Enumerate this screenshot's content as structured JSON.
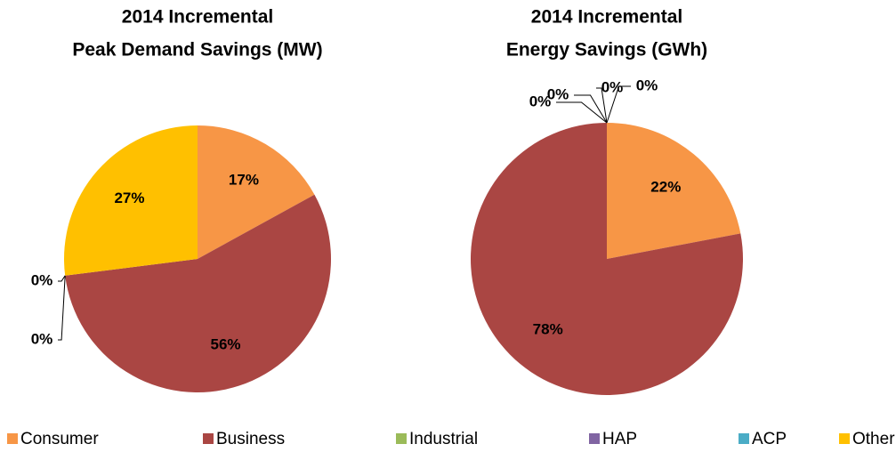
{
  "chart_data": [
    {
      "type": "pie",
      "title": [
        "2014  Incremental",
        "Peak Demand Savings (MW)"
      ],
      "categories": [
        "Consumer",
        "Business",
        "Industrial",
        "HAP",
        "ACP",
        "Other"
      ],
      "values": [
        17,
        56,
        0,
        0,
        0,
        27
      ],
      "value_labels": [
        "17%",
        "56%",
        "0%",
        "0%",
        null,
        "27%"
      ],
      "colors": [
        "#f79646",
        "#aa4643",
        "#9bbb59",
        "#8064a2",
        "#4bacc6",
        "#ffc000"
      ],
      "legend": "bottom"
    },
    {
      "type": "pie",
      "title": [
        "2014 Incremental",
        "Energy Savings (GWh)"
      ],
      "categories": [
        "Consumer",
        "Business",
        "Industrial",
        "HAP",
        "ACP",
        "Other"
      ],
      "values": [
        22,
        78,
        0,
        0,
        0,
        0
      ],
      "value_labels": [
        "22%",
        "78%",
        "0%",
        "0%",
        "0%",
        "0%"
      ],
      "colors": [
        "#f79646",
        "#aa4643",
        "#9bbb59",
        "#8064a2",
        "#4bacc6",
        "#ffc000"
      ]
    }
  ]
}
